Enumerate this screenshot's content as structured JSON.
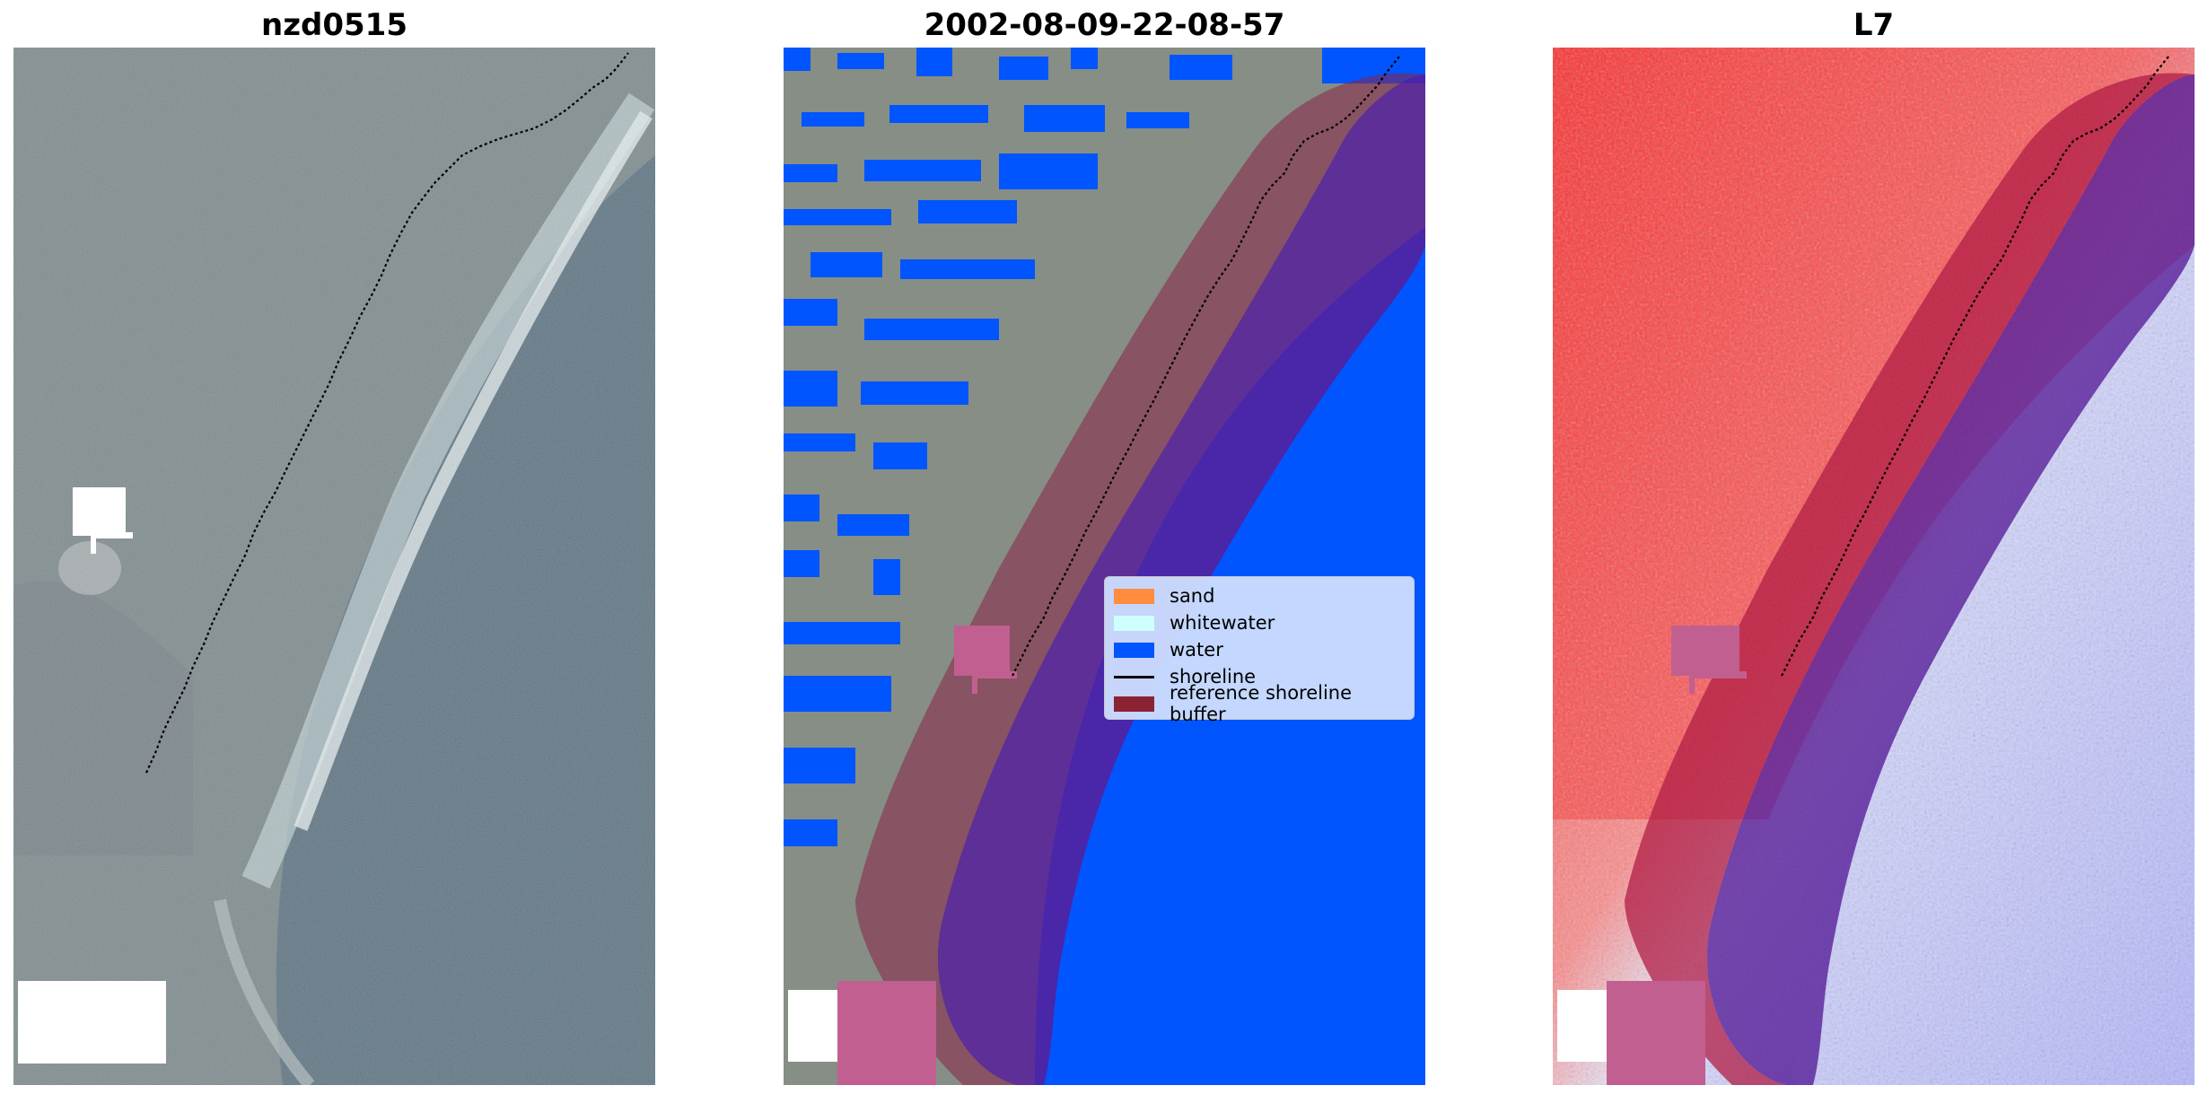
{
  "panels": [
    {
      "title": "nzd0515"
    },
    {
      "title": "2002-08-09-22-08-57"
    },
    {
      "title": "L7"
    }
  ],
  "legend": {
    "items": [
      {
        "label": "sand",
        "color": "#ff8c3f",
        "kind": "patch"
      },
      {
        "label": "whitewater",
        "color": "#cfffff",
        "kind": "patch"
      },
      {
        "label": "water",
        "color": "#0055ff",
        "kind": "patch"
      },
      {
        "label": "shoreline",
        "color": "#000000",
        "kind": "line"
      },
      {
        "label": "reference shoreline buffer",
        "color": "#8b2332",
        "kind": "patch"
      }
    ]
  }
}
